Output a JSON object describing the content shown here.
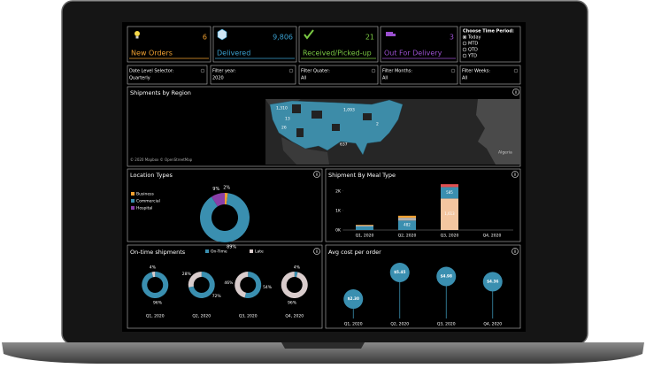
{
  "kpis": [
    {
      "value": "6",
      "label": "New Orders"
    },
    {
      "value": "9,806",
      "label": "Delivered"
    },
    {
      "value": "21",
      "label": "Received/Picked-up"
    },
    {
      "value": "3",
      "label": "Out For Delivery"
    }
  ],
  "time_period": {
    "title": "Choose Time Period:",
    "options": [
      "Today",
      "MTD",
      "QTD",
      "YTD"
    ],
    "selected": "Today"
  },
  "filters": [
    {
      "label": "Date Level Selector:",
      "value": "Quarterly"
    },
    {
      "label": "Filter year:",
      "value": "2020"
    },
    {
      "label": "Filter Quater:",
      "value": "All"
    },
    {
      "label": "Filter Months:",
      "value": "All"
    },
    {
      "label": "Filter Weeks:",
      "value": "All"
    }
  ],
  "map": {
    "title": "Shipments by Region",
    "labels": [
      "1,310",
      "13",
      "26",
      "1,093",
      "637",
      "2"
    ],
    "attribution": "© 2020 Mapbox © OpenStreetMap",
    "place": "Algeria"
  },
  "chart_data": [
    {
      "type": "donut",
      "title": "Location Types",
      "categories": [
        "Business",
        "Commercial",
        "Hospital"
      ],
      "values": [
        2,
        89,
        9
      ],
      "value_labels": [
        "2%",
        "89%",
        "9%"
      ],
      "colors": [
        "#f0a030",
        "#3a8fb0",
        "#8a3fa8"
      ]
    },
    {
      "type": "stacked_bar",
      "title": "Shipment By Meal Type",
      "categories": [
        "Q1, 2020",
        "Q2, 2020",
        "Q3, 2020",
        "Q4, 2020"
      ],
      "ylim": [
        0,
        2400
      ],
      "yticks": [
        {
          "value": 0,
          "label": "0K"
        },
        {
          "value": 1000,
          "label": "1K"
        },
        {
          "value": 2000,
          "label": "2K"
        }
      ],
      "series": [
        {
          "color": "#f4c6a0",
          "values": [
            0,
            0,
            1613,
            0
          ],
          "value_labels": [
            null,
            null,
            "1,613",
            null
          ]
        },
        {
          "color": "#3a8fb0",
          "values": [
            180,
            482,
            585,
            0
          ],
          "value_labels": [
            null,
            "482",
            "585",
            null
          ]
        },
        {
          "color": "#b0b0b0",
          "values": [
            60,
            150,
            0,
            0
          ]
        },
        {
          "color": "#f0a030",
          "values": [
            30,
            100,
            0,
            0
          ]
        },
        {
          "color": "#e05050",
          "values": [
            0,
            0,
            150,
            0
          ]
        }
      ]
    },
    {
      "type": "multi_donut",
      "title": "On-time shipments",
      "categories": [
        "Q1, 2020",
        "Q2, 2020",
        "Q3, 2020",
        "Q4, 2020"
      ],
      "series": [
        {
          "name": "On-Time",
          "color": "#3a8fb0",
          "values": [
            96,
            72,
            54,
            4
          ],
          "value_labels": [
            "96%",
            "72%",
            "54%",
            "4%"
          ]
        },
        {
          "name": "Late",
          "color": "#d9cccc",
          "values": [
            4,
            28,
            46,
            96
          ],
          "value_labels": [
            "4%",
            "28%",
            "46%",
            "96%"
          ]
        }
      ]
    },
    {
      "type": "lollipop",
      "title": "Avg cost per order",
      "categories": [
        "Q1, 2020",
        "Q2, 2020",
        "Q3, 2020",
        "Q4, 2020"
      ],
      "values": [
        2.3,
        5.45,
        4.98,
        4.36
      ],
      "value_labels": [
        "$2.30",
        "$5.45",
        "$4.98",
        "$4.36"
      ],
      "color": "#3a8fb0"
    }
  ]
}
